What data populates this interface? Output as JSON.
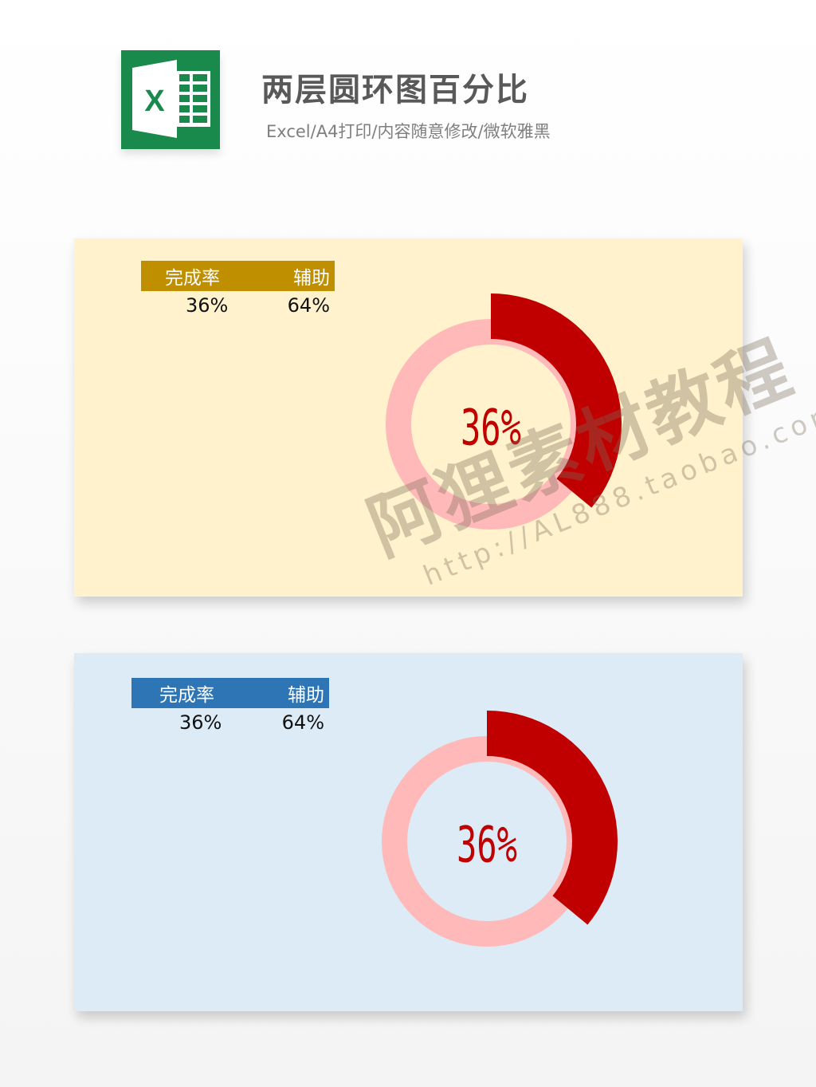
{
  "header": {
    "title": "两层圆环图百分比",
    "subtitle": "Excel/A4打印/内容随意修改/微软雅黑",
    "logo_icon": "excel-logo-icon",
    "logo_letter": "X"
  },
  "panels": [
    {
      "bg": "#fff2cc",
      "header_color": "#bf8f00",
      "col1": "完成率",
      "col2": "辅助",
      "val1": "36%",
      "val2": "64%",
      "center_label": "36%"
    },
    {
      "bg": "#ddebf7",
      "header_color": "#2e75b6",
      "col1": "完成率",
      "col2": "辅助",
      "val1": "36%",
      "val2": "64%",
      "center_label": "36%"
    }
  ],
  "chart_data": [
    {
      "type": "pie",
      "variant": "two-layer doughnut",
      "categories": [
        "完成率",
        "辅助"
      ],
      "values": [
        36,
        64
      ],
      "colors": {
        "progress": "#c00000",
        "track": "#ffb9b9",
        "label": "#c00000"
      },
      "center_label": "36%"
    },
    {
      "type": "pie",
      "variant": "two-layer doughnut",
      "categories": [
        "完成率",
        "辅助"
      ],
      "values": [
        36,
        64
      ],
      "colors": {
        "progress": "#c00000",
        "track": "#ffb9b9",
        "label": "#c00000"
      },
      "center_label": "36%"
    }
  ],
  "watermark": {
    "line1": "阿狸素材教程",
    "line2": "http://AL888.taobao.com"
  }
}
